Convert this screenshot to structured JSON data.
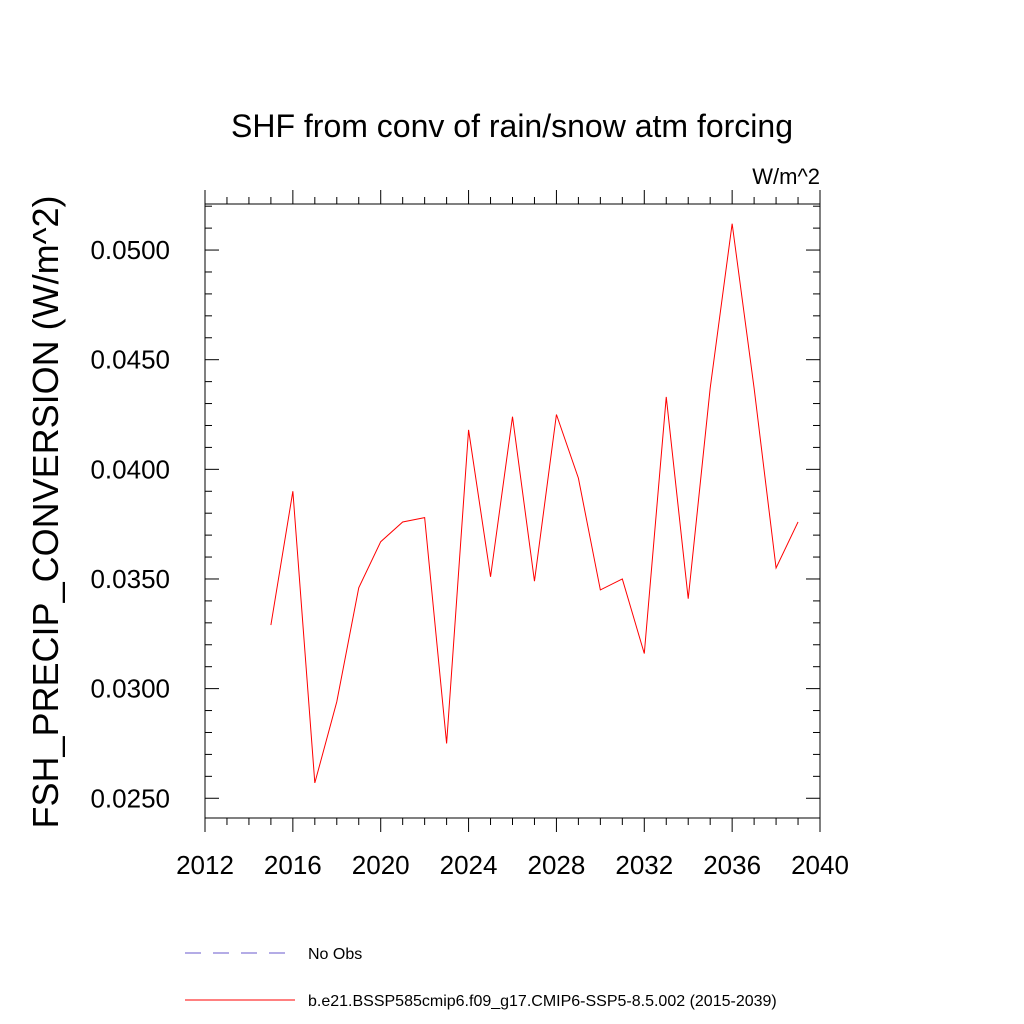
{
  "chart_data": {
    "type": "line",
    "title": "SHF from conv of rain/snow atm forcing",
    "units_label": "W/m^2",
    "xlabel": "",
    "ylabel": "FSH_PRECIP_CONVERSION  (W/m^2)",
    "xlim": [
      2012,
      2040
    ],
    "ylim": [
      0.0241,
      0.0521
    ],
    "x_ticks": [
      "2012",
      "2016",
      "2020",
      "2024",
      "2028",
      "2032",
      "2036",
      "2040"
    ],
    "y_ticks": [
      "0.0250",
      "0.0300",
      "0.0350",
      "0.0400",
      "0.0450",
      "0.0500"
    ],
    "grid": false,
    "legend_position": "bottom",
    "series": [
      {
        "name": "b.e21.BSSP585cmip6.f09_g17.CMIP6-SSP5-8.5.002 (2015-2039)",
        "color": "#ff0000",
        "style": "solid",
        "x": [
          2015,
          2016,
          2017,
          2018,
          2019,
          2020,
          2021,
          2022,
          2023,
          2024,
          2025,
          2026,
          2027,
          2028,
          2029,
          2030,
          2031,
          2032,
          2033,
          2034,
          2035,
          2036,
          2037,
          2038,
          2039
        ],
        "values": [
          0.0329,
          0.039,
          0.0257,
          0.0294,
          0.0346,
          0.0367,
          0.0376,
          0.0378,
          0.0275,
          0.0418,
          0.0351,
          0.0424,
          0.0349,
          0.0425,
          0.0396,
          0.0345,
          0.035,
          0.0316,
          0.0433,
          0.0341,
          0.0437,
          0.0512,
          0.0437,
          0.0355,
          0.0376
        ]
      }
    ],
    "legend": [
      {
        "label": "No Obs",
        "color": "#6a5acd",
        "style": "dashed"
      },
      {
        "label": "b.e21.BSSP585cmip6.f09_g17.CMIP6-SSP5-8.5.002 (2015-2039)",
        "color": "#ff0000",
        "style": "solid"
      }
    ]
  }
}
